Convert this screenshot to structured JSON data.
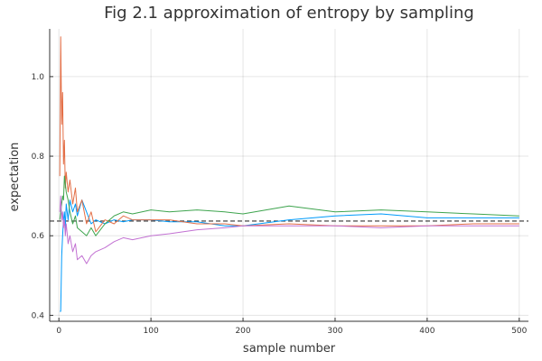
{
  "chart_data": {
    "type": "line",
    "title": "Fig 2.1 approximation of entropy by sampling",
    "xlabel": "sample number",
    "ylabel": "expectation",
    "xlim": [
      -10,
      510
    ],
    "ylim": [
      0.385,
      1.12
    ],
    "xticks": [
      0,
      100,
      200,
      300,
      400,
      500
    ],
    "yticks": [
      0.4,
      0.6,
      0.8,
      1.0
    ],
    "ytick_labels": [
      "0.4",
      "0.6",
      "0.8",
      "1.0"
    ],
    "grid": true,
    "legend": "none",
    "reference_line": {
      "y": 0.637,
      "style": "dashed",
      "color": "#333333"
    },
    "series": [
      {
        "color": "#009AFA",
        "x": [
          1,
          2,
          3,
          4,
          5,
          6,
          7,
          8,
          10,
          12,
          15,
          18,
          20,
          25,
          30,
          35,
          40,
          50,
          60,
          70,
          80,
          100,
          120,
          150,
          180,
          200,
          250,
          300,
          350,
          400,
          450,
          500
        ],
        "y": [
          0.41,
          0.41,
          0.55,
          0.6,
          0.64,
          0.66,
          0.62,
          0.68,
          0.64,
          0.69,
          0.66,
          0.68,
          0.65,
          0.69,
          0.66,
          0.63,
          0.64,
          0.63,
          0.64,
          0.635,
          0.64,
          0.64,
          0.635,
          0.635,
          0.625,
          0.625,
          0.64,
          0.65,
          0.655,
          0.645,
          0.645,
          0.645
        ]
      },
      {
        "color": "#E36F47",
        "x": [
          1,
          2,
          3,
          4,
          5,
          6,
          7,
          8,
          10,
          12,
          15,
          18,
          20,
          25,
          30,
          35,
          40,
          50,
          60,
          70,
          80,
          100,
          120,
          150,
          180,
          200,
          250,
          300,
          350,
          400,
          450,
          500
        ],
        "y": [
          0.75,
          1.1,
          0.88,
          0.96,
          0.78,
          0.84,
          0.72,
          0.76,
          0.71,
          0.74,
          0.68,
          0.72,
          0.66,
          0.69,
          0.63,
          0.66,
          0.61,
          0.64,
          0.63,
          0.65,
          0.64,
          0.64,
          0.64,
          0.63,
          0.63,
          0.625,
          0.63,
          0.625,
          0.625,
          0.625,
          0.63,
          0.63
        ]
      },
      {
        "color": "#3EA44E",
        "x": [
          1,
          2,
          3,
          4,
          5,
          6,
          7,
          8,
          10,
          12,
          15,
          18,
          20,
          25,
          30,
          35,
          40,
          50,
          60,
          70,
          80,
          100,
          120,
          150,
          180,
          200,
          250,
          300,
          350,
          400,
          450,
          500
        ],
        "y": [
          0.64,
          0.66,
          0.68,
          0.7,
          0.69,
          0.75,
          0.73,
          0.71,
          0.69,
          0.66,
          0.63,
          0.65,
          0.62,
          0.61,
          0.6,
          0.62,
          0.6,
          0.63,
          0.65,
          0.66,
          0.655,
          0.665,
          0.66,
          0.665,
          0.66,
          0.655,
          0.675,
          0.66,
          0.665,
          0.66,
          0.655,
          0.65
        ]
      },
      {
        "color": "#C271D2",
        "x": [
          1,
          2,
          3,
          4,
          5,
          6,
          7,
          8,
          10,
          12,
          15,
          18,
          20,
          25,
          30,
          35,
          40,
          50,
          60,
          70,
          80,
          100,
          120,
          150,
          180,
          200,
          250,
          300,
          350,
          400,
          450,
          500
        ],
        "y": [
          0.66,
          0.7,
          0.64,
          0.66,
          0.62,
          0.64,
          0.6,
          0.63,
          0.58,
          0.6,
          0.56,
          0.58,
          0.54,
          0.55,
          0.53,
          0.55,
          0.56,
          0.57,
          0.585,
          0.595,
          0.59,
          0.6,
          0.605,
          0.615,
          0.62,
          0.625,
          0.625,
          0.625,
          0.62,
          0.625,
          0.625,
          0.625
        ]
      }
    ]
  }
}
